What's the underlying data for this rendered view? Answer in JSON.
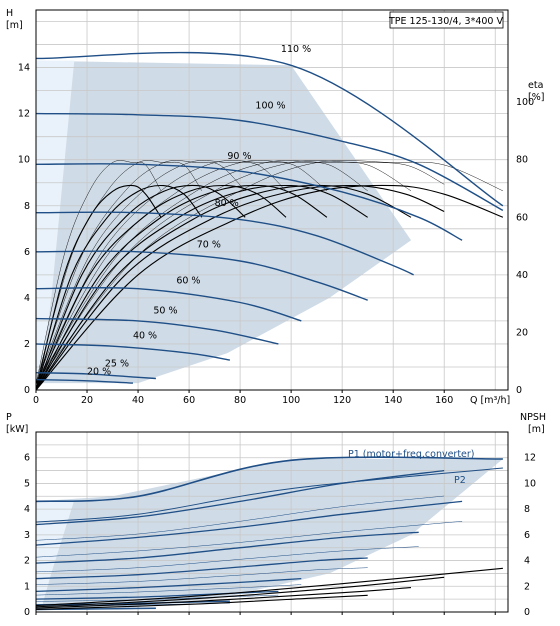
{
  "colors": {
    "region": "#cfdbe7",
    "region_light": "#e9f2fa",
    "curve": "#1f4f86",
    "eff": "#000000",
    "grid": "#c8c8c8"
  },
  "chart_data": [
    {
      "type": "line",
      "title": "TPE 125-130/4, 3*400 V",
      "xlabel": "Q [m³/h]",
      "ylabel_left": "H\n[m]",
      "ylabel_right": "eta\n[%]",
      "xlim": [
        0,
        185
      ],
      "ylim": [
        0,
        16.5
      ],
      "ylim_right": [
        0,
        132
      ],
      "x_ticks": [
        "0",
        "20",
        "40",
        "60",
        "80",
        "100",
        "120",
        "140",
        "160"
      ],
      "y_ticks_left": [
        "0",
        "2",
        "4",
        "6",
        "8",
        "10",
        "12",
        "14"
      ],
      "y_ticks_right": [
        "0",
        "20",
        "40",
        "60",
        "80",
        "100"
      ],
      "grid": true,
      "operating_region": [
        [
          0,
          0.3
        ],
        [
          0,
          14.3
        ],
        [
          100,
          14.1
        ],
        [
          147,
          6.5
        ],
        [
          115,
          4
        ],
        [
          75,
          1.6
        ],
        [
          40,
          0.3
        ]
      ],
      "series": [
        {
          "name": "110 %",
          "x": [
            0,
            100,
            183
          ],
          "y": [
            14.4,
            14.1,
            8.0
          ]
        },
        {
          "name": "100 %",
          "x": [
            0,
            40,
            80,
            120,
            150,
            183
          ],
          "y": [
            12.0,
            11.95,
            11.7,
            10.8,
            9.8,
            7.8
          ]
        },
        {
          "name": "90 %",
          "x": [
            0,
            40,
            80,
            120,
            150,
            167
          ],
          "y": [
            9.8,
            9.8,
            9.5,
            8.6,
            7.5,
            6.5
          ]
        },
        {
          "name": "80 %",
          "x": [
            0,
            40,
            80,
            110,
            140,
            148
          ],
          "y": [
            7.7,
            7.7,
            7.4,
            6.7,
            5.4,
            5.0
          ]
        },
        {
          "name": "70 %",
          "x": [
            0,
            40,
            80,
            110,
            130
          ],
          "y": [
            6.0,
            6.0,
            5.6,
            4.7,
            3.9
          ]
        },
        {
          "name": "60 %",
          "x": [
            0,
            40,
            80,
            104
          ],
          "y": [
            4.4,
            4.4,
            3.8,
            3.0
          ]
        },
        {
          "name": "50 %",
          "x": [
            0,
            40,
            70,
            95
          ],
          "y": [
            3.1,
            3.0,
            2.6,
            2.0
          ]
        },
        {
          "name": "40 %",
          "x": [
            0,
            30,
            60,
            76
          ],
          "y": [
            2.0,
            1.9,
            1.6,
            1.3
          ]
        },
        {
          "name": "25 %",
          "x": [
            0,
            20,
            40,
            47
          ],
          "y": [
            0.75,
            0.7,
            0.55,
            0.5
          ]
        },
        {
          "name": "20 %",
          "x": [
            0,
            20,
            38
          ],
          "y": [
            0.45,
            0.4,
            0.3
          ]
        }
      ],
      "efficiency_curves": [
        {
          "speed": 110,
          "x": [
            0,
            40,
            80,
            110,
            140,
            160,
            183
          ],
          "y": [
            0,
            40,
            60,
            69,
            71,
            68,
            60
          ]
        },
        {
          "speed": 100,
          "x": [
            0,
            35,
            70,
            100,
            125,
            145,
            160
          ],
          "y": [
            0,
            40,
            60,
            69,
            71,
            68,
            62
          ]
        },
        {
          "speed": 90,
          "x": [
            0,
            32,
            63,
            90,
            113,
            130,
            147
          ],
          "y": [
            0,
            40,
            60,
            69,
            71,
            68,
            60
          ]
        },
        {
          "speed": 80,
          "x": [
            0,
            28,
            56,
            80,
            100,
            115,
            130
          ],
          "y": [
            0,
            40,
            60,
            69,
            71,
            68,
            60
          ]
        },
        {
          "speed": 70,
          "x": [
            0,
            25,
            49,
            70,
            88,
            101,
            114
          ],
          "y": [
            0,
            40,
            60,
            69,
            71,
            68,
            60
          ]
        },
        {
          "speed": 60,
          "x": [
            0,
            21,
            42,
            60,
            75,
            87,
            98
          ],
          "y": [
            0,
            40,
            60,
            69,
            71,
            68,
            60
          ]
        },
        {
          "speed": 50,
          "x": [
            0,
            18,
            35,
            50,
            63,
            72,
            82
          ],
          "y": [
            0,
            40,
            60,
            69,
            71,
            68,
            60
          ]
        },
        {
          "speed": 40,
          "x": [
            0,
            14,
            28,
            40,
            50,
            58,
            65
          ],
          "y": [
            0,
            40,
            60,
            69,
            71,
            68,
            60
          ]
        },
        {
          "speed": 30,
          "x": [
            0,
            11,
            21,
            30,
            38,
            43,
            49
          ],
          "y": [
            0,
            40,
            60,
            69,
            71,
            68,
            60
          ]
        }
      ]
    },
    {
      "type": "line",
      "xlabel": "",
      "ylabel_left": "P\n[kW]",
      "ylabel_right": "NPSH\n[m]",
      "xlim": [
        0,
        185
      ],
      "ylim": [
        0,
        7
      ],
      "ylim_right": [
        0,
        14
      ],
      "y_ticks_left": [
        "0",
        "1",
        "2",
        "3",
        "4",
        "5",
        "6"
      ],
      "y_ticks_right": [
        "0",
        "2",
        "4",
        "6",
        "8",
        "10",
        "12"
      ],
      "grid": true,
      "operating_region": [
        [
          0,
          0.05
        ],
        [
          0,
          4.3
        ],
        [
          30,
          4.5
        ],
        [
          100,
          5.95
        ],
        [
          183,
          5.95
        ],
        [
          147,
          3.0
        ],
        [
          115,
          1.5
        ],
        [
          75,
          0.6
        ],
        [
          40,
          0.2
        ]
      ],
      "series": [
        {
          "name": "P1 (motor+freq.converter)",
          "x": [
            0,
            40,
            100,
            183
          ],
          "y": [
            4.3,
            4.5,
            5.9,
            5.95
          ]
        },
        {
          "name": "P2",
          "x": [
            0,
            40,
            100,
            183
          ],
          "y": [
            3.5,
            3.8,
            4.8,
            5.6
          ]
        }
      ],
      "speed_power_curves": [
        {
          "speed": 100,
          "x": [
            0,
            40,
            80,
            120,
            160
          ],
          "y": [
            3.4,
            3.7,
            4.3,
            5.0,
            5.5
          ]
        },
        {
          "speed": 90,
          "x": [
            0,
            40,
            80,
            120,
            167
          ],
          "y": [
            2.6,
            2.9,
            3.3,
            3.8,
            4.3
          ]
        },
        {
          "speed": 80,
          "x": [
            0,
            40,
            80,
            120,
            150
          ],
          "y": [
            1.9,
            2.1,
            2.5,
            2.9,
            3.1
          ]
        },
        {
          "speed": 70,
          "x": [
            0,
            40,
            80,
            110,
            130
          ],
          "y": [
            1.3,
            1.45,
            1.75,
            2.0,
            2.1
          ]
        },
        {
          "speed": 60,
          "x": [
            0,
            40,
            80,
            104
          ],
          "y": [
            0.8,
            0.95,
            1.15,
            1.3
          ]
        },
        {
          "speed": 50,
          "x": [
            0,
            40,
            70,
            95
          ],
          "y": [
            0.5,
            0.58,
            0.7,
            0.8
          ]
        },
        {
          "speed": 40,
          "x": [
            0,
            30,
            60,
            76
          ],
          "y": [
            0.28,
            0.32,
            0.38,
            0.42
          ]
        },
        {
          "speed": 25,
          "x": [
            0,
            20,
            47
          ],
          "y": [
            0.1,
            0.12,
            0.15
          ]
        }
      ],
      "npsh_curves": [
        {
          "speed": 110,
          "x": [
            0,
            60,
            120,
            183
          ],
          "y": [
            0.5,
            1.2,
            2.2,
            3.4
          ]
        },
        {
          "speed": 100,
          "x": [
            0,
            60,
            120,
            160
          ],
          "y": [
            0.4,
            1.0,
            1.9,
            2.7
          ]
        },
        {
          "speed": 90,
          "x": [
            0,
            60,
            120,
            147
          ],
          "y": [
            0.3,
            0.8,
            1.5,
            1.9
          ]
        },
        {
          "speed": 80,
          "x": [
            0,
            60,
            110,
            130
          ],
          "y": [
            0.2,
            0.6,
            1.1,
            1.3
          ]
        }
      ]
    }
  ]
}
